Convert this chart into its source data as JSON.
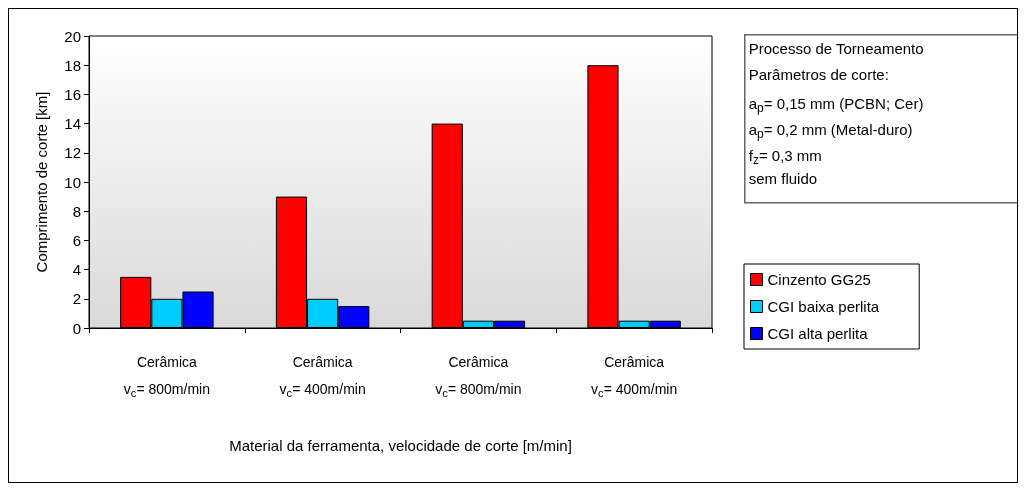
{
  "chart_data": {
    "type": "bar",
    "categories": [
      "Cerâmica\nv$_{c}$= 800m/min",
      "Cerâmica\nv$_{c}$= 400m/min",
      "Cerâmica\nv$_{c}$= 800m/min",
      "Cerâmica\nv$_{c}$= 400m/min"
    ],
    "series": [
      {
        "name": "Cinzento GG25",
        "color": "#ff0000",
        "values": [
          3.5,
          9,
          14,
          18
        ]
      },
      {
        "name": "CGI baixa perlita",
        "color": "#00ccff",
        "values": [
          2,
          2,
          0.5,
          0.5
        ]
      },
      {
        "name": "CGI alta perlita",
        "color": "#0000ff",
        "values": [
          2.5,
          1.5,
          0.5,
          0.5
        ]
      }
    ],
    "xlabel": "Material da ferramenta, velocidade de corte [m/min]",
    "ylabel": "Comprimento de corte [km]",
    "ylim": [
      0,
      20
    ],
    "yticks": [
      0,
      2,
      4,
      6,
      8,
      10,
      12,
      14,
      16,
      18,
      20
    ],
    "annotations": [
      "Processo de Torneamento",
      "Parâmetros de corte:",
      "a$_{p}$= 0,15 mm (PCBN; Cer)",
      "a$_{p}$= 0,2 mm (Metal-duro)",
      "f$_{z}$= 0,3 mm",
      "sem fluido"
    ],
    "legend": "right",
    "grid": false
  }
}
